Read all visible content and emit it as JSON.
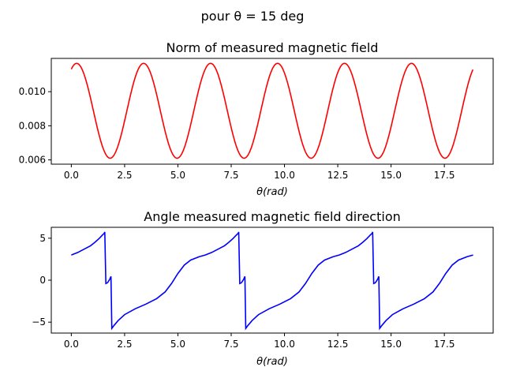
{
  "figure": {
    "suptitle": "pour θ = 15 deg"
  },
  "chart_data": [
    {
      "type": "line",
      "title": "Norm of measured magnetic field",
      "xlabel": "θ(rad)",
      "ylabel": "",
      "xlim": [
        -0.94,
        19.79
      ],
      "ylim": [
        0.00575,
        0.01195
      ],
      "xticks": [
        0.0,
        2.5,
        5.0,
        7.5,
        10.0,
        12.5,
        15.0,
        17.5
      ],
      "xtick_labels": [
        "0.0",
        "2.5",
        "5.0",
        "7.5",
        "10.0",
        "12.5",
        "15.0",
        "17.5"
      ],
      "yticks": [
        0.006,
        0.008,
        0.01
      ],
      "ytick_labels": [
        "0.006",
        "0.008",
        "0.010"
      ],
      "grid": false,
      "series": [
        {
          "color": "#ff0000",
          "x_range": [
            0,
            18.85
          ],
          "description": "periodic oscillation between ~0.0061 and ~0.0117, period ~3.14",
          "x": [
            0.0,
            0.2,
            0.4,
            0.6,
            0.8,
            1.0,
            1.2,
            1.4,
            1.6,
            1.8,
            2.0,
            2.2,
            2.4,
            2.6,
            2.8,
            3.0,
            3.2,
            3.4
          ],
          "y": [
            0.01162,
            0.01164,
            0.0114,
            0.01075,
            0.00985,
            0.00885,
            0.0079,
            0.0069,
            0.00625,
            0.0061,
            0.00628,
            0.0069,
            0.0079,
            0.00895,
            0.01005,
            0.0109,
            0.01158,
            0.01166
          ]
        }
      ]
    },
    {
      "type": "line",
      "title": "Angle measured magnetic field direction",
      "xlabel": "θ(rad)",
      "ylabel": "",
      "xlim": [
        -0.94,
        19.79
      ],
      "ylim": [
        -6.3,
        6.3
      ],
      "xticks": [
        0.0,
        2.5,
        5.0,
        7.5,
        10.0,
        12.5,
        15.0,
        17.5
      ],
      "xtick_labels": [
        "0.0",
        "2.5",
        "5.0",
        "7.5",
        "10.0",
        "12.5",
        "15.0",
        "17.5"
      ],
      "yticks": [
        -5,
        0,
        5
      ],
      "ytick_labels": [
        "−5",
        "0",
        "5"
      ],
      "grid": false,
      "series": [
        {
          "color": "#0000ff",
          "x_range": [
            0,
            18.85
          ],
          "period": 6.283,
          "x": [
            0.0,
            0.3,
            0.6,
            0.9,
            1.1,
            1.3,
            1.45,
            1.55,
            1.57,
            1.62,
            1.7,
            1.8,
            1.86,
            1.9,
            2.0,
            2.2,
            2.5,
            3.0,
            3.5,
            4.0,
            4.4,
            4.7,
            5.0,
            5.3,
            5.6,
            6.0,
            6.283
          ],
          "y": [
            3.0,
            3.3,
            3.7,
            4.1,
            4.5,
            4.95,
            5.35,
            5.6,
            5.75,
            -0.4,
            -0.3,
            0.1,
            0.45,
            -5.75,
            -5.4,
            -4.8,
            -4.1,
            -3.4,
            -2.85,
            -2.2,
            -1.4,
            -0.4,
            0.8,
            1.8,
            2.4,
            2.8,
            3.0
          ]
        }
      ]
    }
  ]
}
